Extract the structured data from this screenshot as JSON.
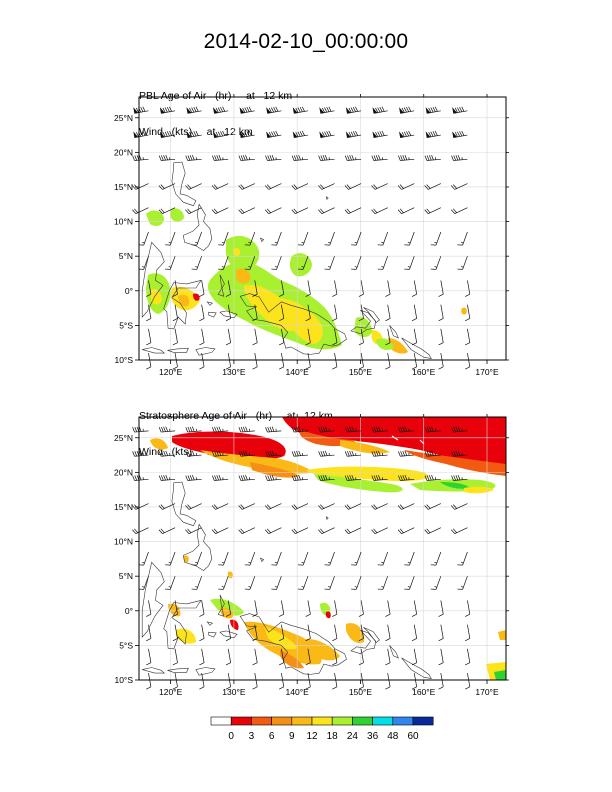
{
  "page": {
    "title": "2014-02-10_00:00:00"
  },
  "panels": [
    {
      "field_line": "PBL Age of Air   (hr)     at   12 km",
      "wind_line": "Wind   (kts)     at   12 km"
    },
    {
      "field_line": "Stratosphere Age of Air   (hr)     at   12 km",
      "wind_line": "Wind   (kts)     at   12 km"
    }
  ],
  "map": {
    "lon_range": [
      115,
      173
    ],
    "lat_range": [
      -10,
      28
    ],
    "lon_ticks": [
      "120°E",
      "130°E",
      "140°E",
      "150°E",
      "160°E",
      "170°E"
    ],
    "lat_ticks": [
      "25°N",
      "20°N",
      "15°N",
      "10°N",
      "5°N",
      "0°",
      "5°S",
      "10°S"
    ],
    "grid": true,
    "overlay": "wind barbs",
    "coastline_color": "#333333"
  },
  "colorbar": {
    "labels": [
      "0",
      "3",
      "6",
      "9",
      "12",
      "18",
      "24",
      "36",
      "48",
      "60"
    ],
    "colors": [
      "#ffffff",
      "#e8000b",
      "#f15a10",
      "#f68f16",
      "#fab916",
      "#fde31b",
      "#a8f030",
      "#2fd32f",
      "#00e0e8",
      "#2f86ee",
      "#0a2a9c"
    ]
  }
}
